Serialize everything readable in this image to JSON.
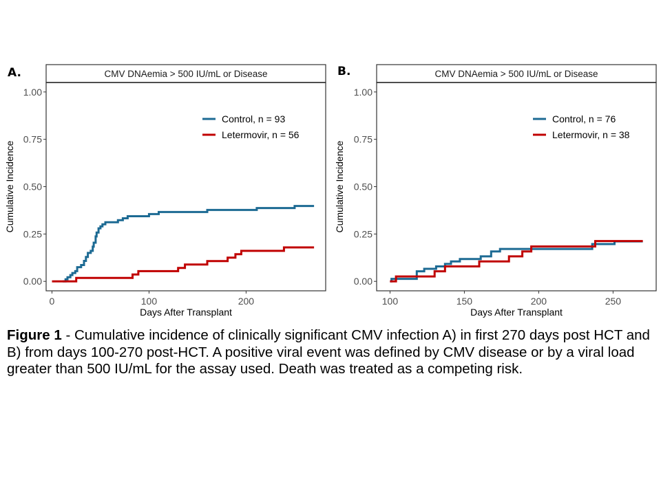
{
  "figure": {
    "panel_letters": [
      "A.",
      "B."
    ],
    "caption": {
      "label": "Figure 1",
      "text": " - Cumulative incidence of clinically significant CMV infection A) in first 270 days post HCT and B) from days 100-270 post-HCT. A positive viral event was defined by CMV disease or by a viral load greater than 500 IU/mL for the assay used. Death was treated as a competing risk."
    }
  },
  "colors": {
    "control": "#1C6A93",
    "letermovir": "#C00000",
    "axis": "#333333",
    "tick_text": "#4D4D4D"
  },
  "chart_data": [
    {
      "type": "line",
      "step": true,
      "panel": "A.",
      "title": "CMV DNAemia > 500 IU/mL or Disease",
      "xlabel": "Days After Transplant",
      "ylabel": "Cumulative Incidence",
      "xlim": [
        -6,
        282
      ],
      "ylim": [
        -0.05,
        1.05
      ],
      "xticks": [
        0,
        100,
        200
      ],
      "yticks": [
        0.0,
        0.25,
        0.5,
        0.75,
        1.0
      ],
      "ytick_labels": [
        "0.00",
        "0.25",
        "0.50",
        "0.75",
        "1.00"
      ],
      "grid": false,
      "legend": "top-right",
      "series": [
        {
          "name": "Control, n = 93",
          "color_key": "control",
          "x": [
            11,
            14,
            16,
            19,
            21,
            24,
            26,
            30,
            33,
            35,
            37,
            40,
            42,
            43,
            45,
            46,
            48,
            50,
            52,
            55,
            62,
            68,
            73,
            78,
            100,
            110,
            160,
            211,
            250,
            270
          ],
          "y": [
            0.0,
            0.011,
            0.022,
            0.033,
            0.044,
            0.054,
            0.075,
            0.086,
            0.108,
            0.129,
            0.15,
            0.161,
            0.183,
            0.204,
            0.237,
            0.258,
            0.28,
            0.29,
            0.301,
            0.312,
            0.312,
            0.323,
            0.333,
            0.344,
            0.355,
            0.366,
            0.377,
            0.387,
            0.398,
            0.398
          ]
        },
        {
          "name": "Letermovir, n = 56",
          "color_key": "letermovir",
          "x": [
            0,
            25,
            83,
            89,
            130,
            137,
            160,
            181,
            189,
            195,
            239,
            270
          ],
          "y": [
            0.0,
            0.018,
            0.036,
            0.054,
            0.071,
            0.089,
            0.107,
            0.125,
            0.143,
            0.161,
            0.179,
            0.179
          ]
        }
      ]
    },
    {
      "type": "line",
      "step": true,
      "panel": "B.",
      "title": "CMV DNAemia > 500 IU/mL or Disease",
      "xlabel": "Days After Transplant",
      "ylabel": "Cumulative Incidence",
      "xlim": [
        91,
        279
      ],
      "ylim": [
        -0.05,
        1.05
      ],
      "xticks": [
        100,
        150,
        200,
        250
      ],
      "yticks": [
        0.0,
        0.25,
        0.5,
        0.75,
        1.0
      ],
      "ytick_labels": [
        "0.00",
        "0.25",
        "0.50",
        "0.75",
        "1.00"
      ],
      "grid": false,
      "legend": "top-right",
      "series": [
        {
          "name": "Control, n = 76",
          "color_key": "control",
          "x": [
            100,
            101,
            108,
            118,
            123,
            131,
            137,
            141,
            147,
            161,
            168,
            174,
            211,
            236,
            251,
            270
          ],
          "y": [
            0.0,
            0.013,
            0.013,
            0.053,
            0.066,
            0.079,
            0.092,
            0.105,
            0.118,
            0.132,
            0.158,
            0.171,
            0.171,
            0.197,
            0.211,
            0.211
          ]
        },
        {
          "name": "Letermovir, n = 38",
          "color_key": "letermovir",
          "x": [
            100,
            104,
            130,
            137,
            160,
            180,
            189,
            195,
            238,
            270
          ],
          "y": [
            0.0,
            0.026,
            0.053,
            0.079,
            0.105,
            0.132,
            0.158,
            0.184,
            0.213,
            0.213
          ]
        }
      ]
    }
  ]
}
